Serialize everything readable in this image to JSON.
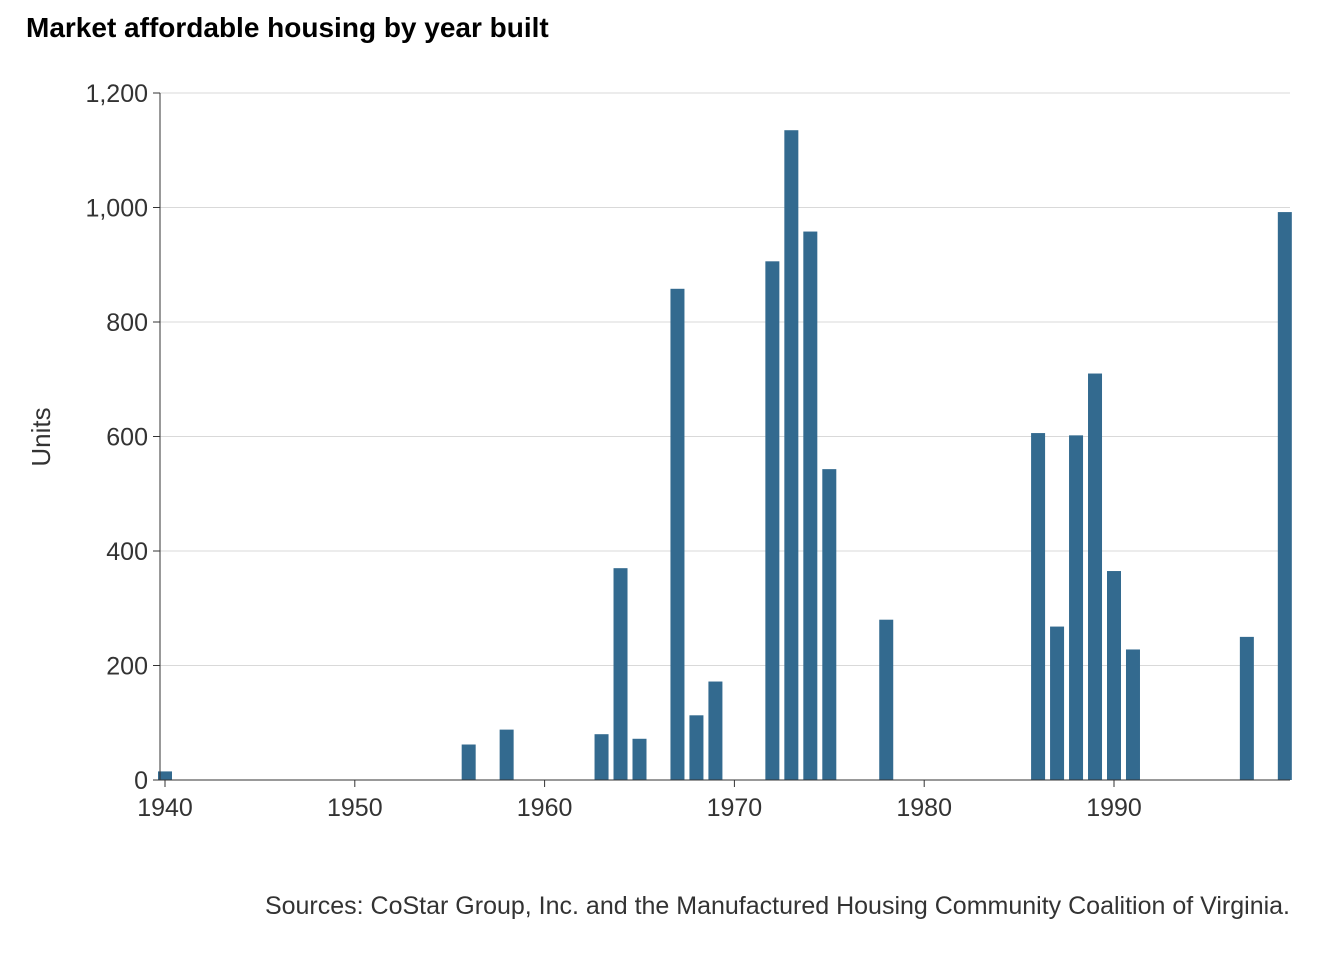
{
  "chart_data": {
    "type": "bar",
    "title": "Market affordable housing by year built",
    "xlabel": "",
    "ylabel": "Units",
    "source": "Sources: CoStar Group, Inc. and the Manufactured Housing Community Coalition of Virginia.",
    "bar_color": "#336a8f",
    "grid": true,
    "ylim": [
      0,
      1200
    ],
    "yticks": [
      0,
      200,
      400,
      600,
      800,
      1000,
      1200
    ],
    "ytick_labels": [
      "0",
      "200",
      "400",
      "600",
      "800",
      "1,000",
      "1,200"
    ],
    "xlim": [
      1940,
      1999
    ],
    "xticks": [
      1940,
      1950,
      1960,
      1970,
      1980,
      1990
    ],
    "xtick_labels": [
      "1940",
      "1950",
      "1960",
      "1970",
      "1980",
      "1990"
    ],
    "x": [
      1940,
      1956,
      1958,
      1963,
      1964,
      1965,
      1967,
      1968,
      1969,
      1972,
      1973,
      1974,
      1975,
      1978,
      1986,
      1987,
      1988,
      1989,
      1990,
      1991,
      1997,
      1999
    ],
    "values": [
      15,
      62,
      88,
      80,
      370,
      72,
      858,
      113,
      172,
      906,
      1135,
      958,
      543,
      280,
      606,
      268,
      602,
      710,
      365,
      228,
      250,
      992
    ]
  }
}
